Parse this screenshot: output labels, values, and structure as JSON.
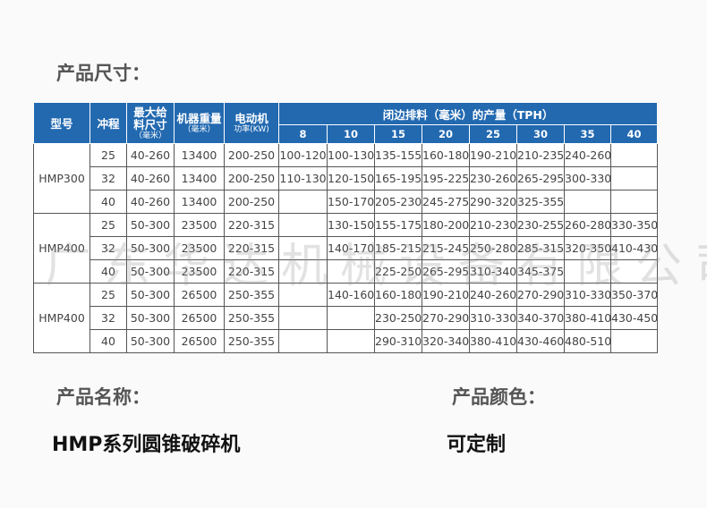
{
  "section_size": "产品尺寸：",
  "section_name": "产品名称：",
  "section_color": "产品颜色：",
  "product_name": "HMP系列圆锥破碎机",
  "product_color": "可定制",
  "watermark": "广东华达机械设备有限公司",
  "table": {
    "headers": {
      "model": "型号",
      "stroke": "冲程",
      "feed_1": "最大给",
      "feed_2": "料尺寸",
      "feed_unit": "（毫米）",
      "weight": "机器重量",
      "weight_unit": "（毫米）",
      "motor": "电动机",
      "motor_unit": "功率(KW)",
      "output": "闭边排料（毫米）的产量（TPH）"
    },
    "css_columns": [
      "8",
      "10",
      "15",
      "20",
      "25",
      "30",
      "35",
      "40"
    ],
    "groups": [
      {
        "model": "HMP300",
        "rows": [
          [
            "25",
            "40-260",
            "13400",
            "200-250",
            "100-120",
            "100-130",
            "135-155",
            "160-180",
            "190-210",
            "210-235",
            "240-260",
            ""
          ],
          [
            "32",
            "40-260",
            "13400",
            "200-250",
            "110-130",
            "120-150",
            "165-195",
            "195-225",
            "230-260",
            "265-295",
            "300-330",
            ""
          ],
          [
            "40",
            "40-260",
            "13400",
            "200-250",
            "",
            "150-170",
            "205-230",
            "245-275",
            "290-320",
            "325-355",
            "",
            ""
          ]
        ]
      },
      {
        "model": "HMP400",
        "rows": [
          [
            "25",
            "50-300",
            "23500",
            "220-315",
            "",
            "130-150",
            "155-175",
            "180-200",
            "210-230",
            "230-255",
            "260-280",
            "330-350"
          ],
          [
            "32",
            "50-300",
            "23500",
            "220-315",
            "",
            "140-170",
            "185-215",
            "215-245",
            "250-280",
            "285-315",
            "320-350",
            "410-430"
          ],
          [
            "40",
            "50-300",
            "23500",
            "220-315",
            "",
            "",
            "225-250",
            "265-295",
            "310-340",
            "345-375",
            "",
            ""
          ]
        ]
      },
      {
        "model": "HMP400",
        "rows": [
          [
            "25",
            "50-300",
            "26500",
            "250-355",
            "",
            "140-160",
            "160-180",
            "190-210",
            "240-260",
            "270-290",
            "310-330",
            "350-370"
          ],
          [
            "32",
            "50-300",
            "26500",
            "250-355",
            "",
            "",
            "230-250",
            "270-290",
            "310-330",
            "340-370",
            "380-410",
            "430-450"
          ],
          [
            "40",
            "50-300",
            "26500",
            "250-355",
            "",
            "",
            "290-310",
            "320-340",
            "380-410",
            "430-460",
            "480-510",
            ""
          ]
        ]
      }
    ]
  },
  "colors": {
    "header_bg": "#2269b0"
  }
}
